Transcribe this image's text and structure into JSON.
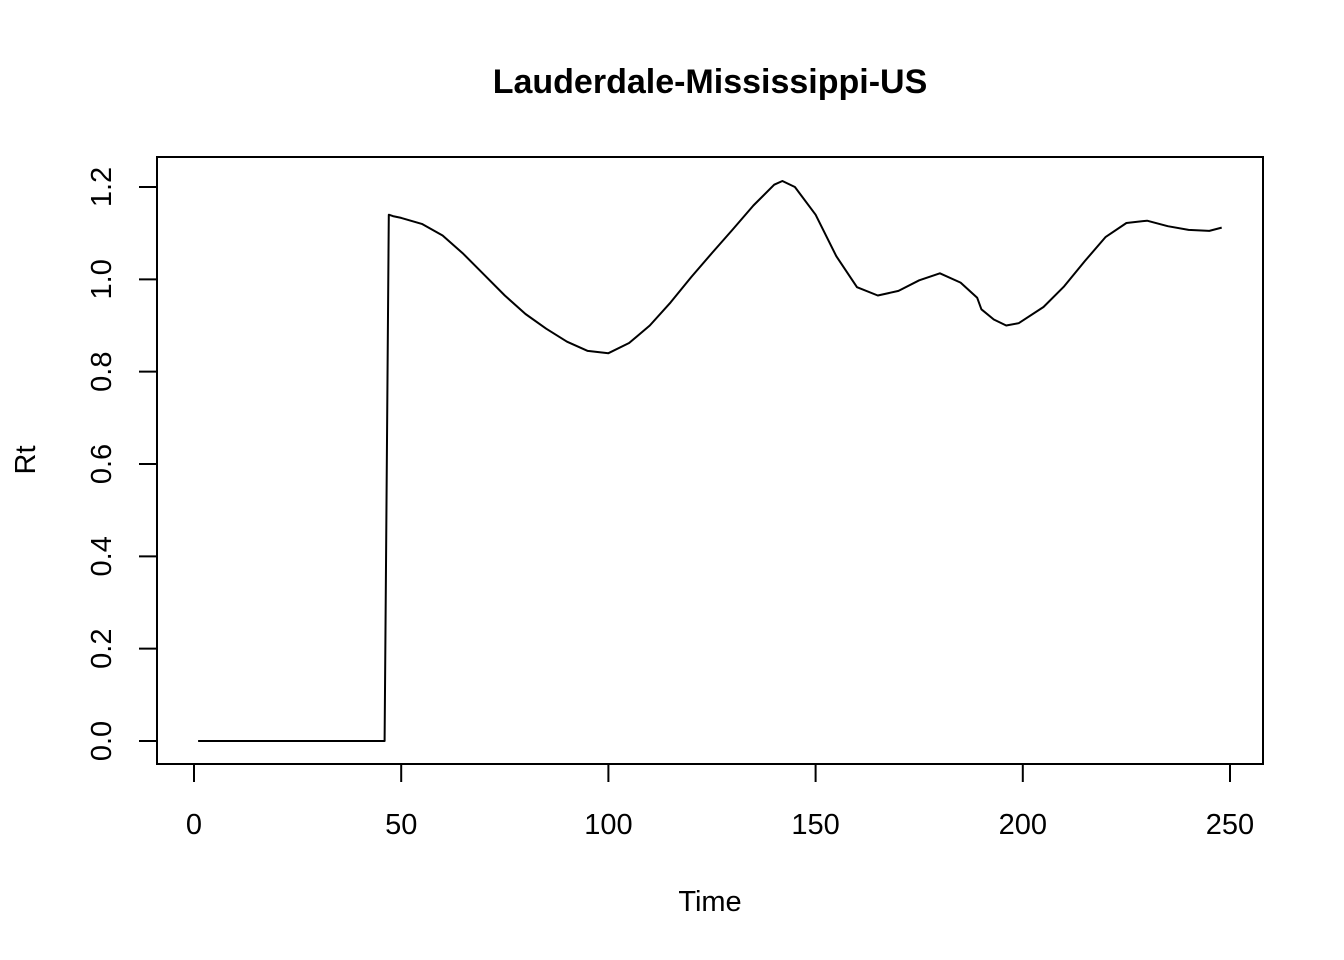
{
  "chart_data": {
    "type": "line",
    "title": "Lauderdale-Mississippi-US",
    "xlabel": "Time",
    "ylabel": "Rt",
    "xlim": [
      1,
      248
    ],
    "ylim": [
      0,
      1.21
    ],
    "xticks": [
      "0",
      "50",
      "100",
      "150",
      "200",
      "250"
    ],
    "yticks": [
      "0.0",
      "0.2",
      "0.4",
      "0.6",
      "0.8",
      "1.0",
      "1.2"
    ],
    "grid": false,
    "legend": "none",
    "line_color": "#000000",
    "series": [
      {
        "x": [
          1,
          10,
          20,
          30,
          40,
          45,
          46,
          47,
          48,
          50,
          55,
          60,
          65,
          70,
          75,
          80,
          85,
          90,
          95,
          100,
          105,
          110,
          115,
          120,
          125,
          130,
          135,
          140,
          142,
          145,
          150,
          155,
          160,
          165,
          170,
          175,
          180,
          185,
          189,
          190,
          193,
          196,
          199,
          205,
          210,
          215,
          220,
          225,
          230,
          235,
          240,
          245,
          248
        ],
        "y": [
          0,
          0,
          0,
          0,
          0,
          0,
          0,
          1.14,
          1.137,
          1.133,
          1.12,
          1.095,
          1.055,
          1.01,
          0.965,
          0.925,
          0.893,
          0.865,
          0.845,
          0.84,
          0.862,
          0.9,
          0.95,
          1.005,
          1.057,
          1.108,
          1.16,
          1.205,
          1.213,
          1.2,
          1.14,
          1.05,
          0.983,
          0.965,
          0.975,
          0.998,
          1.013,
          0.993,
          0.96,
          0.935,
          0.913,
          0.9,
          0.905,
          0.94,
          0.985,
          1.04,
          1.092,
          1.122,
          1.127,
          1.115,
          1.107,
          1.105,
          1.112
        ]
      }
    ]
  }
}
